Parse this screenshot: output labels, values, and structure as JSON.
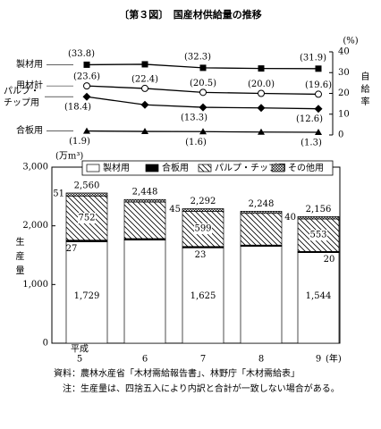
{
  "figure_title": "〔第３図〕　国産材供給量の推移",
  "source": "資料：農林水産省「木材需給報告書」、林野庁「木材需給表」",
  "note": "注：生産量は、四捨五入により内訳と合計が一致しない場合がある。",
  "chart_data": [
    {
      "type": "line",
      "y_unit": "(%)",
      "y_label": "自給率",
      "axis_side": "right",
      "ylim": [
        0,
        40
      ],
      "yticks": [
        0,
        10,
        20,
        30,
        40
      ],
      "series": [
        {
          "name": "製材用",
          "color": "#000000",
          "marker": "square",
          "values": [
            33.8,
            34.0,
            32.3,
            32.0,
            31.9
          ],
          "value_labels": [
            "(33.8)",
            null,
            "(32.3)",
            null,
            "(31.9)"
          ]
        },
        {
          "name": "用材計",
          "color": "#000000",
          "marker": "circle-open",
          "values": [
            23.6,
            22.4,
            20.5,
            20.0,
            19.6
          ],
          "value_labels": [
            "(23.6)",
            "(22.4)",
            "(20.5)",
            "(20.0)",
            "(19.6)"
          ]
        },
        {
          "name": "パルプ・チップ用",
          "color": "#000000",
          "marker": "diamond",
          "values": [
            18.4,
            14.5,
            13.3,
            13.0,
            12.6
          ],
          "value_labels": [
            "(18.4)",
            null,
            "(13.3)",
            null,
            "(12.6)"
          ]
        },
        {
          "name": "合板用",
          "color": "#000000",
          "marker": "triangle",
          "values": [
            1.9,
            1.7,
            1.6,
            1.4,
            1.3
          ],
          "value_labels": [
            "(1.9)",
            null,
            "(1.6)",
            null,
            "(1.3)"
          ]
        }
      ]
    },
    {
      "type": "stacked_bar",
      "categories": [
        "5",
        "6",
        "7",
        "8",
        "9"
      ],
      "category_prefix": "平成",
      "x_unit": "(年)",
      "y_unit": "(万m³)",
      "y_label": "生産量",
      "ylim": [
        0,
        3000
      ],
      "yticks": [
        0,
        {
          "value": 1000,
          "label": "1,000"
        },
        {
          "value": 2000,
          "label": "2,000"
        },
        {
          "value": 3000,
          "label": "3,000"
        }
      ],
      "legend": "top",
      "series": [
        {
          "name": "製材用",
          "color": "#ffffff",
          "pattern": "solid",
          "values": [
            1729,
            1758,
            1625,
            1650,
            1544
          ],
          "value_labels": [
            "1,729",
            null,
            "1,625",
            null,
            "1,544"
          ]
        },
        {
          "name": "合板用",
          "color": "#000000",
          "pattern": "solid",
          "values": [
            27,
            25,
            23,
            22,
            20
          ],
          "value_labels": [
            "27",
            null,
            "23",
            null,
            "20"
          ]
        },
        {
          "name": "パルプ・チップ用",
          "color": "#000000",
          "pattern": "diagonal",
          "values": [
            752,
            622,
            599,
            540,
            553
          ],
          "value_labels": [
            "752",
            null,
            "599",
            null,
            "553"
          ]
        },
        {
          "name": "その他用",
          "color": "#000000",
          "pattern": "cross",
          "values": [
            51,
            43,
            45,
            36,
            40
          ],
          "value_labels": [
            "51",
            null,
            "45",
            null,
            "40"
          ]
        }
      ],
      "totals": {
        "values": [
          2560,
          2448,
          2292,
          2248,
          2156
        ],
        "value_labels": [
          "2,560",
          "2,448",
          "2,292",
          "2,248",
          "2,156"
        ]
      }
    }
  ]
}
